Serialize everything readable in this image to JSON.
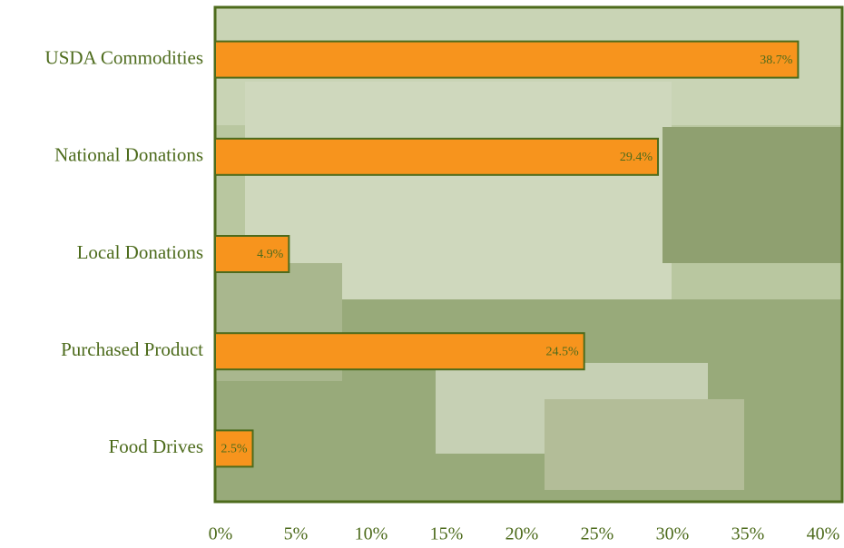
{
  "chart_data": {
    "type": "hbar",
    "categories": [
      "USDA Commodities",
      "National Donations",
      "Local Donations",
      "Purchased Product",
      "Food Drives"
    ],
    "values": [
      38.7,
      29.4,
      4.9,
      24.5,
      2.5
    ],
    "value_labels": [
      "38.7%",
      "29.4%",
      "4.9%",
      "24.5%",
      "2.5%"
    ],
    "color": "#f7941d",
    "xlim": [
      0,
      40
    ],
    "xticks": [
      {
        "value": 0,
        "label": "0%"
      },
      {
        "value": 5,
        "label": "5%"
      },
      {
        "value": 10,
        "label": "10%"
      },
      {
        "value": 15,
        "label": "15%"
      },
      {
        "value": 20,
        "label": "20%"
      },
      {
        "value": 25,
        "label": "25%"
      },
      {
        "value": 30,
        "label": "30%"
      },
      {
        "value": 35,
        "label": "35%"
      },
      {
        "value": 40,
        "label": "40%"
      }
    ],
    "grid": false
  }
}
